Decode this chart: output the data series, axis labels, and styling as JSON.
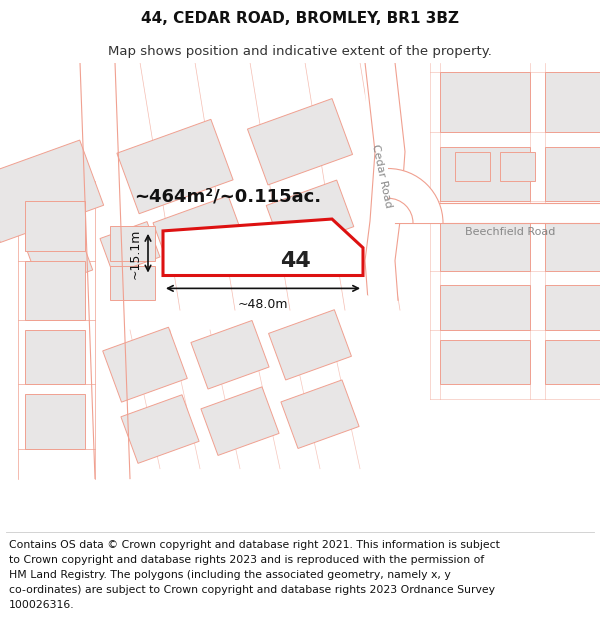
{
  "title": "44, CEDAR ROAD, BROMLEY, BR1 3BZ",
  "subtitle": "Map shows position and indicative extent of the property.",
  "footer_lines": [
    "Contains OS data © Crown copyright and database right 2021. This information is subject",
    "to Crown copyright and database rights 2023 and is reproduced with the permission of",
    "HM Land Registry. The polygons (including the associated geometry, namely x, y",
    "co-ordinates) are subject to Crown copyright and database rights 2023 Ordnance Survey",
    "100026316."
  ],
  "bg_color": "#ffffff",
  "map_bg": "#ffffff",
  "building_fill": "#e8e6e6",
  "building_edge": "#f0a090",
  "road_edge": "#f0a090",
  "plot_edge": "#dd1111",
  "plot_fill": "#ffffff",
  "label_44": "44",
  "area_label": "~464m²/~0.115ac.",
  "dim_horiz": "~48.0m",
  "dim_vert": "~15.1m",
  "cedar_road_label": "Cedar Road",
  "beechfield_road_label": "Beechfield Road",
  "title_fontsize": 11,
  "subtitle_fontsize": 9.5,
  "footer_fontsize": 7.8,
  "road_label_fontsize": 8,
  "area_fontsize": 13,
  "dim_fontsize": 9
}
